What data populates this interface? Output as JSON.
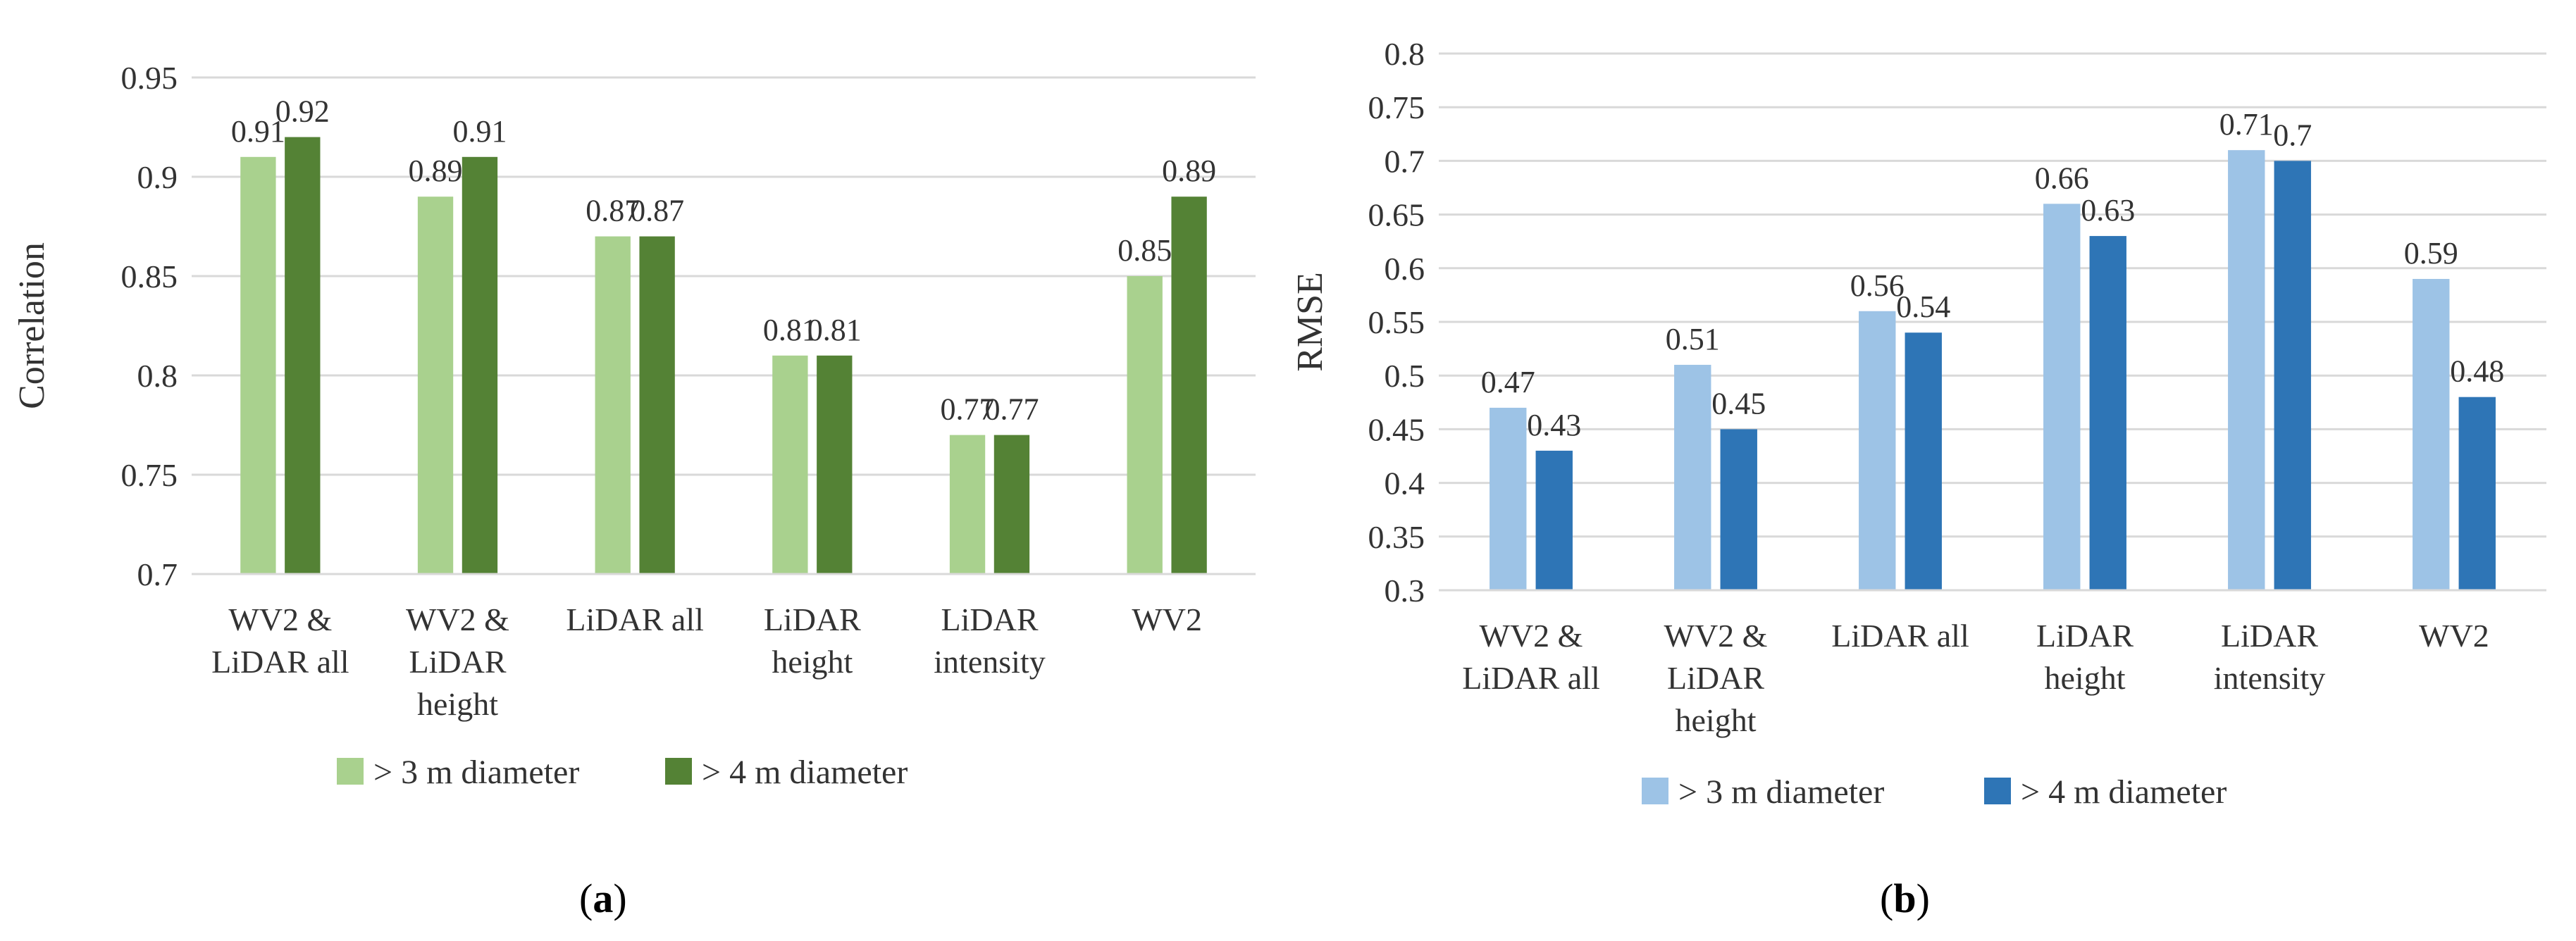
{
  "chart_data": [
    {
      "type": "bar",
      "panel_label": "a",
      "title": "",
      "xlabel": "",
      "ylabel": "Correlation",
      "ylim": [
        0.7,
        0.95
      ],
      "ytick_step": 0.05,
      "yticks": [
        "0.7",
        "0.75",
        "0.8",
        "0.85",
        "0.9",
        "0.95"
      ],
      "grid": true,
      "legend": "bottom",
      "categories": [
        [
          "WV2 &",
          "LiDAR all"
        ],
        [
          "WV2 &",
          "LiDAR",
          "height"
        ],
        [
          "LiDAR all"
        ],
        [
          "LiDAR",
          "height"
        ],
        [
          "LiDAR",
          "intensity"
        ],
        [
          "WV2"
        ]
      ],
      "series": [
        {
          "name": "> 3 m diameter",
          "color": "#a9d18e",
          "values": [
            0.91,
            0.89,
            0.87,
            0.81,
            0.77,
            0.85
          ],
          "labels": [
            "0.91",
            "0.89",
            "0.87",
            "0.81",
            "0.77",
            "0.85"
          ]
        },
        {
          "name": "> 4 m diameter",
          "color": "#548235",
          "values": [
            0.92,
            0.91,
            0.87,
            0.81,
            0.77,
            0.89
          ],
          "labels": [
            "0.92",
            "0.91",
            "0.87",
            "0.81",
            "0.77",
            "0.89"
          ]
        }
      ]
    },
    {
      "type": "bar",
      "panel_label": "b",
      "title": "",
      "xlabel": "",
      "ylabel": "RMSE",
      "ylim": [
        0.3,
        0.8
      ],
      "ytick_step": 0.05,
      "yticks": [
        "0.3",
        "0.35",
        "0.4",
        "0.45",
        "0.5",
        "0.55",
        "0.6",
        "0.65",
        "0.7",
        "0.75",
        "0.8"
      ],
      "grid": true,
      "legend": "bottom",
      "categories": [
        [
          "WV2 &",
          "LiDAR all"
        ],
        [
          "WV2 &",
          "LiDAR",
          "height"
        ],
        [
          "LiDAR all"
        ],
        [
          "LiDAR",
          "height"
        ],
        [
          "LiDAR",
          "intensity"
        ],
        [
          "WV2"
        ]
      ],
      "series": [
        {
          "name": "> 3 m diameter",
          "color": "#9dc3e6",
          "values": [
            0.47,
            0.51,
            0.56,
            0.66,
            0.71,
            0.59
          ],
          "labels": [
            "0.47",
            "0.51",
            "0.56",
            "0.66",
            "0.71",
            "0.59"
          ]
        },
        {
          "name": "> 4 m diameter",
          "color": "#2e75b6",
          "values": [
            0.43,
            0.45,
            0.54,
            0.63,
            0.7,
            0.48
          ],
          "labels": [
            "0.43",
            "0.45",
            "0.54",
            "0.63",
            "0.7",
            "0.48"
          ]
        }
      ]
    }
  ],
  "captions": {
    "a": {
      "open": "(",
      "letter": "a",
      "close": ")"
    },
    "b": {
      "open": "(",
      "letter": "b",
      "close": ")"
    }
  }
}
